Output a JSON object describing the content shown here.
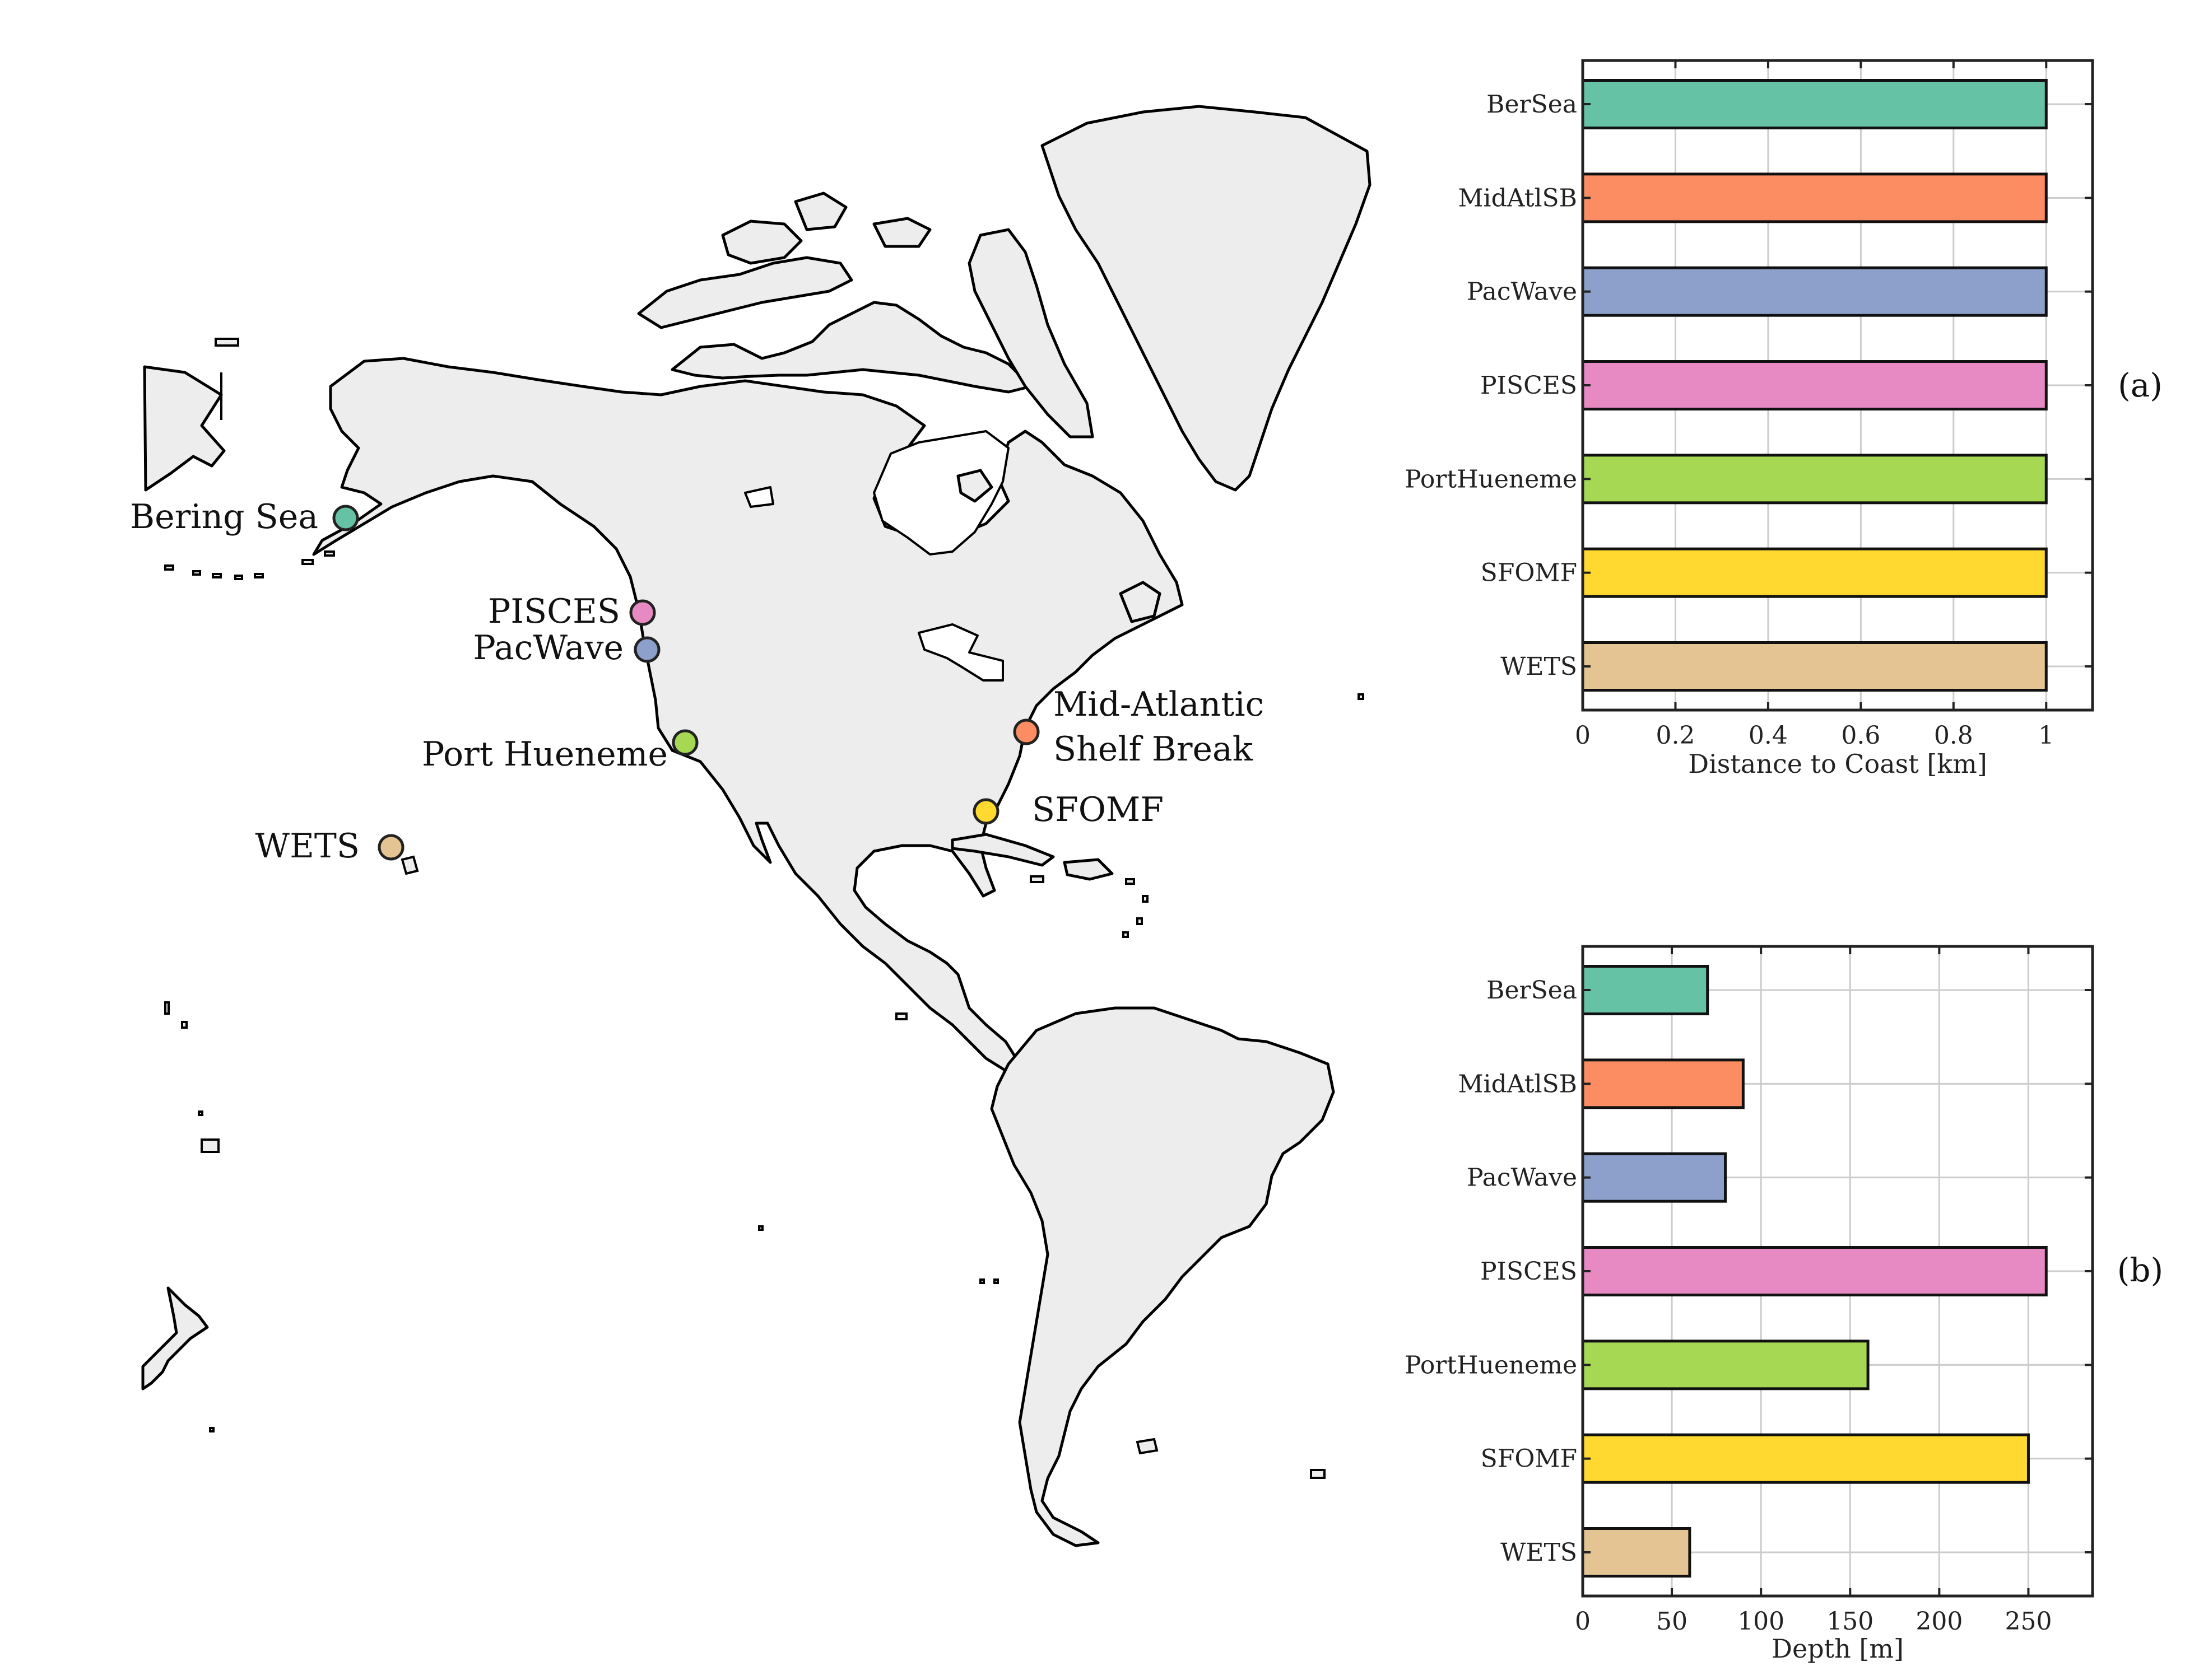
{
  "map": {
    "sites": [
      {
        "id": "bering-sea",
        "label": "Bering Sea",
        "color": "#66c2a5"
      },
      {
        "id": "pisces",
        "label": "PISCES",
        "color": "#e78ac3"
      },
      {
        "id": "pacwave",
        "label": "PacWave",
        "color": "#8da0cb"
      },
      {
        "id": "port-hueneme",
        "label": "Port Hueneme",
        "color": "#a6d854"
      },
      {
        "id": "mid-atlantic",
        "label": "Mid-Atlantic",
        "label2": "Shelf Break",
        "color": "#fc8d62"
      },
      {
        "id": "sfomf",
        "label": "SFOMF",
        "color": "#ffd92f"
      },
      {
        "id": "wets",
        "label": "WETS",
        "color": "#e5c494"
      }
    ]
  },
  "chart_data": [
    {
      "type": "bar",
      "orientation": "horizontal",
      "panel": "(a)",
      "categories": [
        "BerSea",
        "MidAtlSB",
        "PacWave",
        "PISCES",
        "PortHueneme",
        "SFOMF",
        "WETS"
      ],
      "values": [
        1,
        1,
        1,
        1,
        1,
        1,
        1
      ],
      "colors": [
        "#66c2a5",
        "#fc8d62",
        "#8da0cb",
        "#e78ac3",
        "#a6d854",
        "#ffd92f",
        "#e5c494"
      ],
      "xlabel": "Distance to Coast [km]",
      "xlim": [
        0,
        1.1
      ],
      "xticks": [
        0,
        0.2,
        0.4,
        0.6,
        0.8,
        1
      ],
      "xtick_labels": [
        "0",
        "0.2",
        "0.4",
        "0.6",
        "0.8",
        "1"
      ],
      "grid": true
    },
    {
      "type": "bar",
      "orientation": "horizontal",
      "panel": "(b)",
      "categories": [
        "BerSea",
        "MidAtlSB",
        "PacWave",
        "PISCES",
        "PortHueneme",
        "SFOMF",
        "WETS"
      ],
      "values": [
        70,
        90,
        80,
        260,
        160,
        250,
        60
      ],
      "colors": [
        "#66c2a5",
        "#fc8d62",
        "#8da0cb",
        "#e78ac3",
        "#a6d854",
        "#ffd92f",
        "#e5c494"
      ],
      "xlabel": "Depth [m]",
      "xlim": [
        0,
        286
      ],
      "xticks": [
        0,
        50,
        100,
        150,
        200,
        250
      ],
      "xtick_labels": [
        "0",
        "50",
        "100",
        "150",
        "200",
        "250"
      ],
      "grid": true
    }
  ]
}
